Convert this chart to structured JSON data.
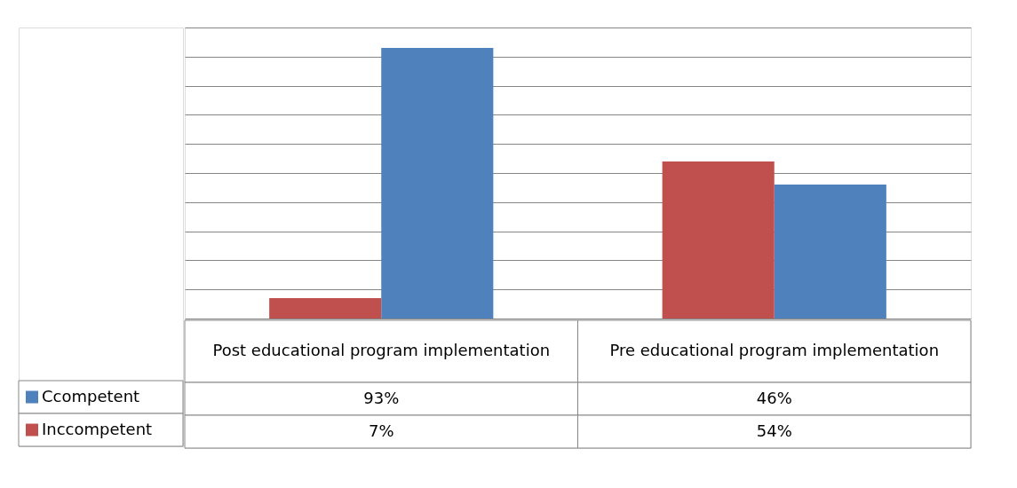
{
  "chart_data": {
    "type": "bar",
    "categories": [
      "Post educational program implementation",
      "Pre educational program implementation"
    ],
    "series": [
      {
        "name": "Ccompetent",
        "color": "#4f81bd",
        "values": [
          93,
          46
        ],
        "value_labels": [
          "93%",
          "46%"
        ]
      },
      {
        "name": "Inccompetent",
        "color": "#c0504d",
        "values": [
          7,
          54
        ],
        "value_labels": [
          "7%",
          "54%"
        ]
      }
    ],
    "ylim": [
      0,
      100
    ],
    "yticks": [
      {
        "value": 0,
        "label": null
      },
      {
        "value": 10,
        "label": null
      },
      {
        "value": 20,
        "label": null
      },
      {
        "value": 30,
        "label": null
      },
      {
        "value": 40,
        "label": null
      },
      {
        "value": 50,
        "label": null
      },
      {
        "value": 60,
        "label": null
      },
      {
        "value": 70,
        "label": null
      },
      {
        "value": 80,
        "label": null
      },
      {
        "value": 90,
        "label": null
      },
      {
        "value": 100,
        "label": null
      }
    ],
    "grid": "y",
    "legend": "bottom",
    "tick_labels": "x"
  }
}
